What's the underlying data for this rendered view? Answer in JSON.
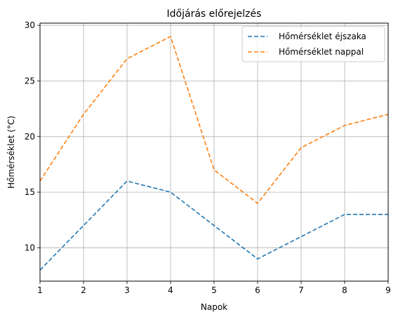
{
  "chart_data": {
    "type": "line",
    "title": "Időjárás előrejelzés",
    "xlabel": "Napok",
    "ylabel": "Hőmérséklet (°C)",
    "x": [
      1,
      2,
      3,
      4,
      5,
      6,
      7,
      8,
      9
    ],
    "xlim": [
      1,
      9
    ],
    "ylim": [
      7,
      30.2
    ],
    "xticks": [
      1,
      2,
      3,
      4,
      5,
      6,
      7,
      8,
      9
    ],
    "yticks": [
      10,
      15,
      20,
      25,
      30
    ],
    "grid": true,
    "legend_position": "top-right",
    "series": [
      {
        "name": "Hőmérséklet éjszaka",
        "values": [
          8,
          12,
          16,
          15,
          12,
          9,
          11,
          13,
          13
        ],
        "color": "#1f77b4",
        "style": "dashed"
      },
      {
        "name": "Hőmérséklet nappal",
        "values": [
          16,
          22,
          27,
          29,
          17,
          14,
          19,
          21,
          22
        ],
        "color": "#ff7f0e",
        "style": "dashed"
      }
    ]
  }
}
